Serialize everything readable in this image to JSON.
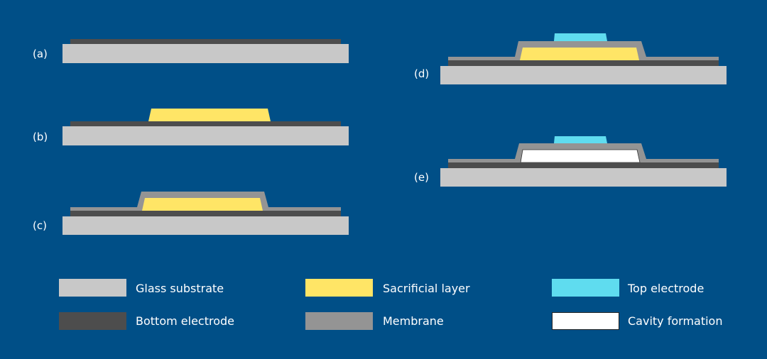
{
  "colors": {
    "background": "#004f87",
    "glass_substrate": "#c8c8c8",
    "bottom_electrode": "#4d4d4d",
    "sacrificial_layer": "#ffe566",
    "membrane": "#949494",
    "top_electrode": "#5fdcef",
    "cavity": "#ffffff"
  },
  "steps": [
    {
      "label": "(a)"
    },
    {
      "label": "(b)"
    },
    {
      "label": "(c)"
    },
    {
      "label": "(d)"
    },
    {
      "label": "(e)"
    }
  ],
  "legend": [
    {
      "label": "Glass substrate",
      "color": "#c8c8c8"
    },
    {
      "label": "Bottom electrode",
      "color": "#4d4d4d"
    },
    {
      "label": "Sacrificial layer",
      "color": "#ffe566"
    },
    {
      "label": "Membrane",
      "color": "#949494"
    },
    {
      "label": "Top electrode",
      "color": "#5fdcef"
    },
    {
      "label": "Cavity formation",
      "color": "#ffffff"
    }
  ]
}
